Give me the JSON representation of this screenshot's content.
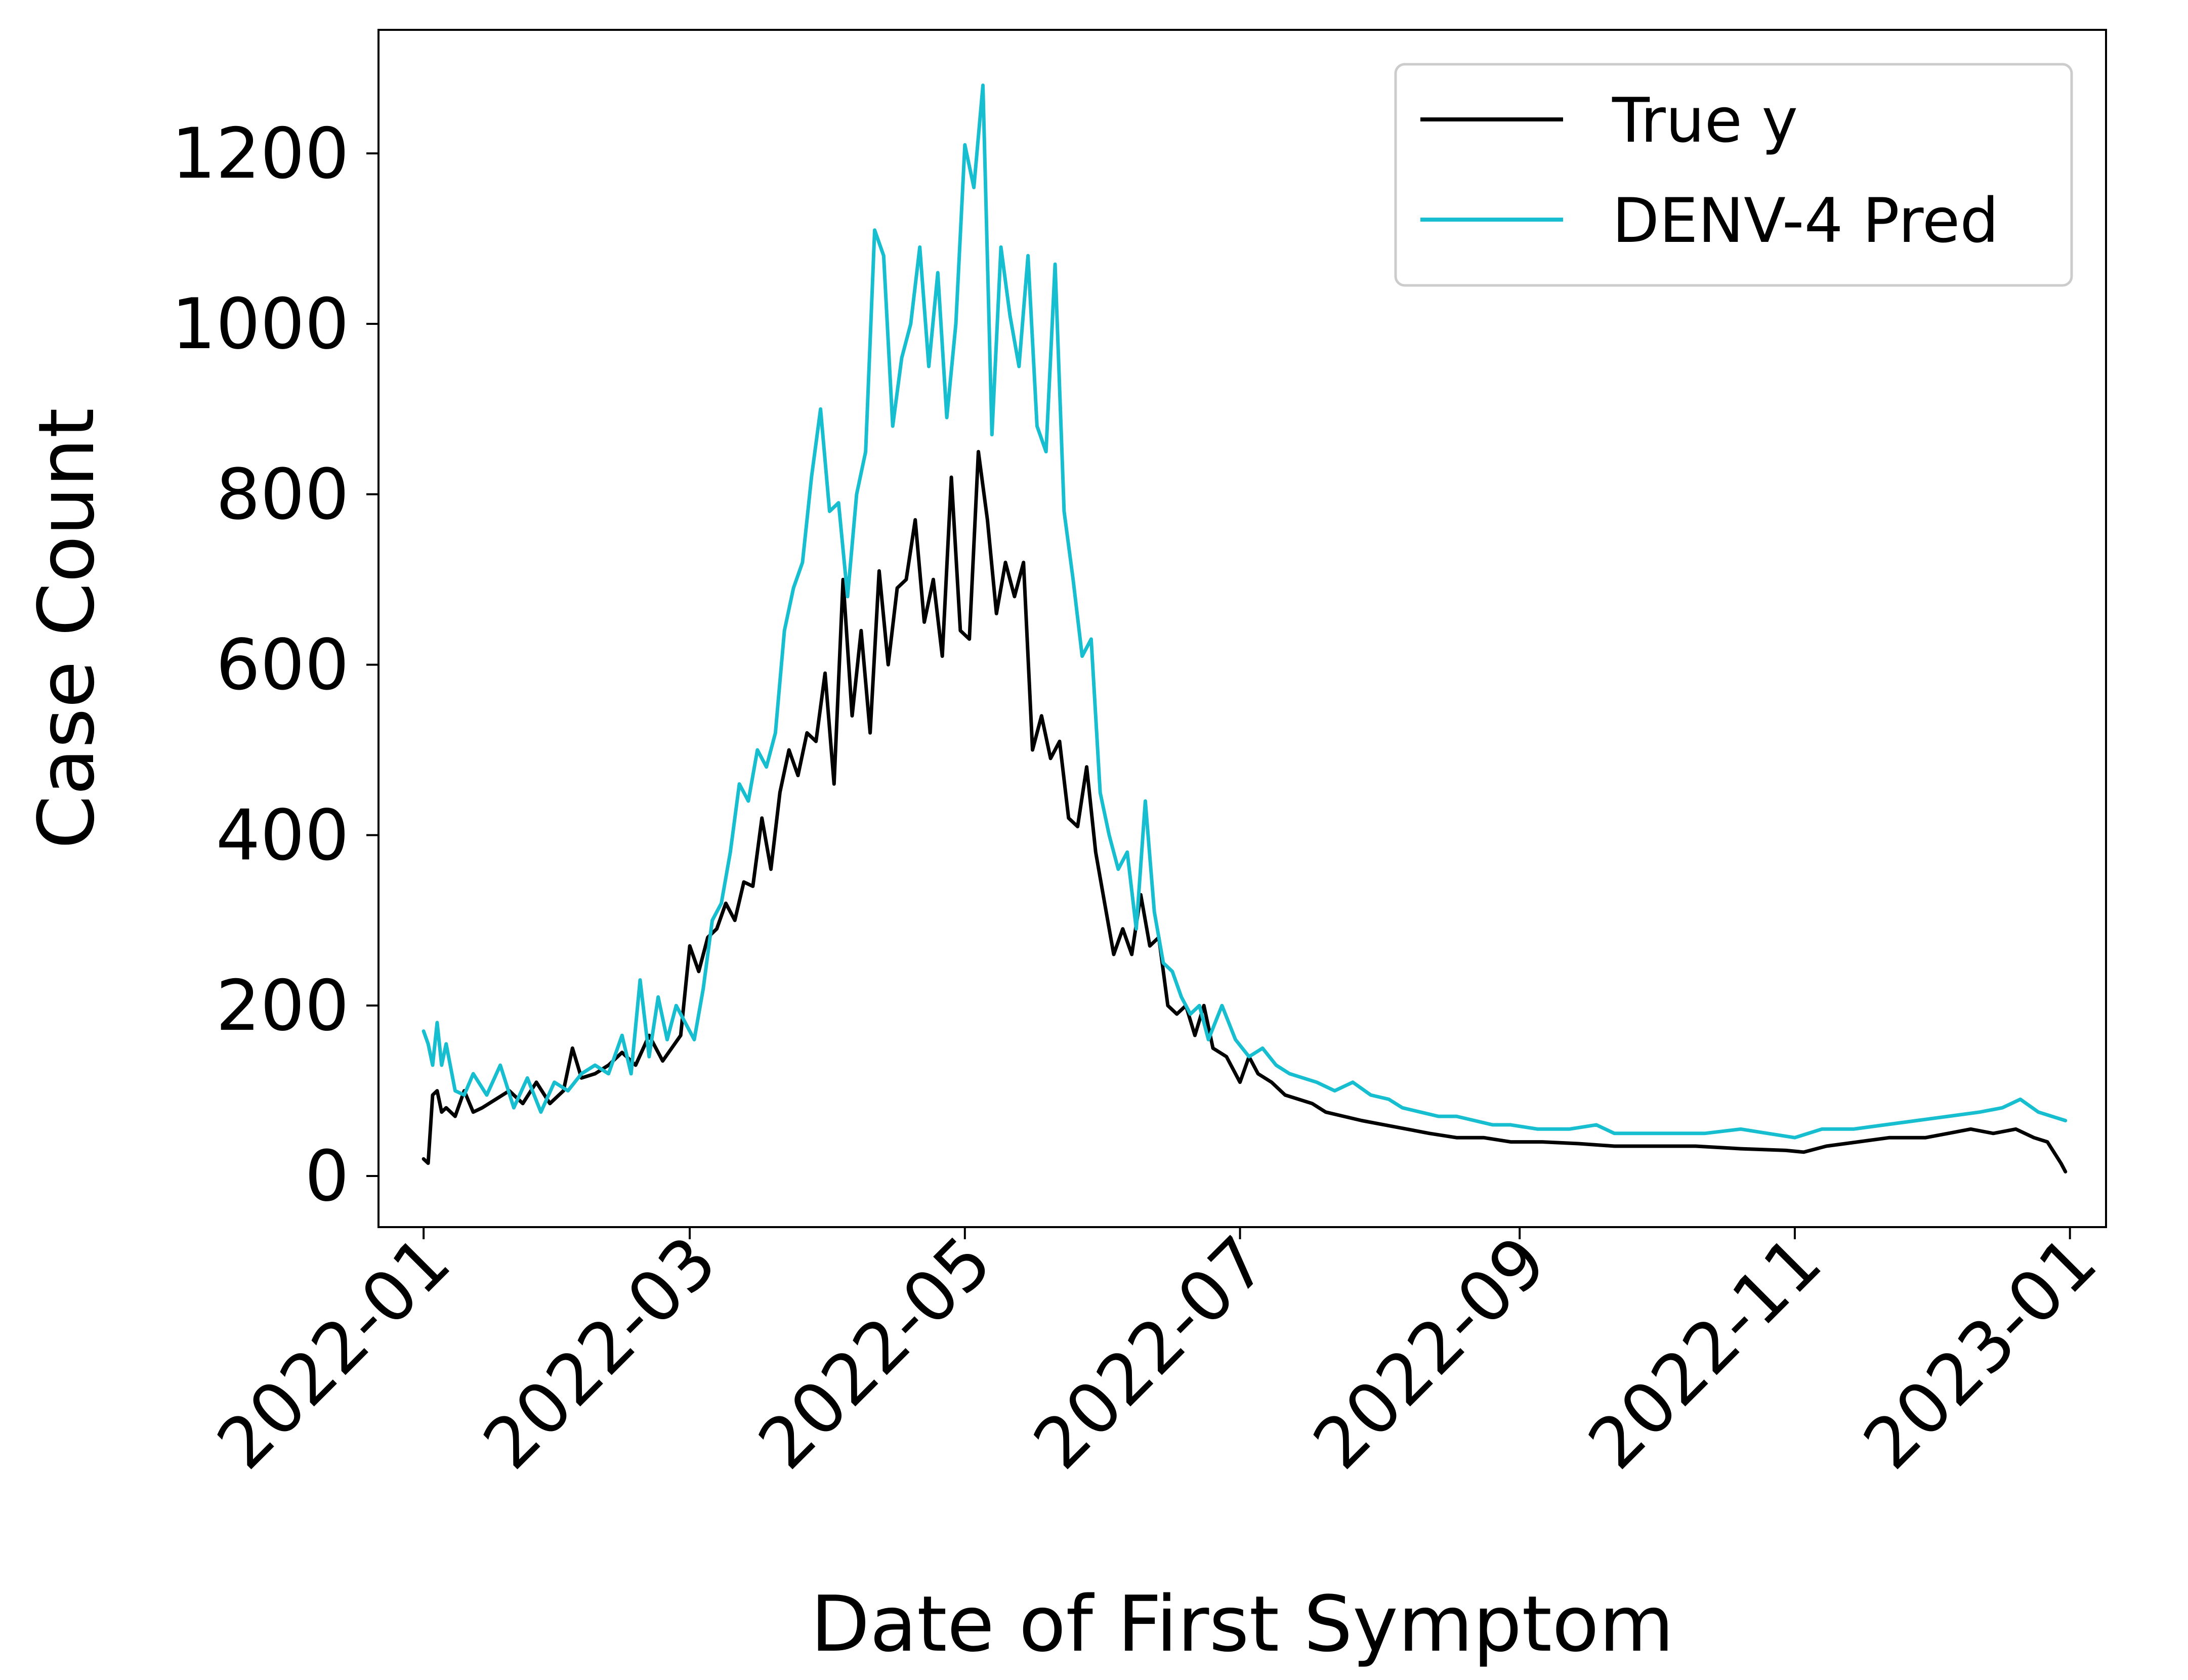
{
  "chart_data": {
    "type": "line",
    "xlabel": "Date of First Symptom",
    "ylabel": "Case Count",
    "x_ticks": [
      "2022-01",
      "2022-03",
      "2022-05",
      "2022-07",
      "2022-09",
      "2022-11",
      "2023-01"
    ],
    "y_ticks": [
      0,
      200,
      400,
      600,
      800,
      1000,
      1200
    ],
    "xlim": [
      "2021-12-22",
      "2023-01-09"
    ],
    "ylim": [
      -60,
      1345
    ],
    "grid": false,
    "legend_position": "top-right",
    "series": [
      {
        "name": "True y",
        "color": "#000000",
        "points": [
          [
            "2022-01-01",
            20
          ],
          [
            "2022-01-02",
            15
          ],
          [
            "2022-01-03",
            95
          ],
          [
            "2022-01-04",
            100
          ],
          [
            "2022-01-05",
            75
          ],
          [
            "2022-01-06",
            80
          ],
          [
            "2022-01-08",
            70
          ],
          [
            "2022-01-10",
            100
          ],
          [
            "2022-01-12",
            75
          ],
          [
            "2022-01-14",
            80
          ],
          [
            "2022-01-17",
            90
          ],
          [
            "2022-01-20",
            100
          ],
          [
            "2022-01-23",
            85
          ],
          [
            "2022-01-26",
            110
          ],
          [
            "2022-01-29",
            85
          ],
          [
            "2022-02-01",
            100
          ],
          [
            "2022-02-03",
            150
          ],
          [
            "2022-02-05",
            115
          ],
          [
            "2022-02-08",
            120
          ],
          [
            "2022-02-11",
            130
          ],
          [
            "2022-02-14",
            145
          ],
          [
            "2022-02-17",
            130
          ],
          [
            "2022-02-20",
            165
          ],
          [
            "2022-02-23",
            135
          ],
          [
            "2022-02-25",
            150
          ],
          [
            "2022-02-27",
            165
          ],
          [
            "2022-03-01",
            270
          ],
          [
            "2022-03-03",
            240
          ],
          [
            "2022-03-05",
            280
          ],
          [
            "2022-03-07",
            290
          ],
          [
            "2022-03-09",
            320
          ],
          [
            "2022-03-11",
            300
          ],
          [
            "2022-03-13",
            345
          ],
          [
            "2022-03-15",
            340
          ],
          [
            "2022-03-17",
            420
          ],
          [
            "2022-03-19",
            360
          ],
          [
            "2022-03-21",
            450
          ],
          [
            "2022-03-23",
            500
          ],
          [
            "2022-03-25",
            470
          ],
          [
            "2022-03-27",
            520
          ],
          [
            "2022-03-29",
            510
          ],
          [
            "2022-03-31",
            590
          ],
          [
            "2022-04-02",
            460
          ],
          [
            "2022-04-04",
            700
          ],
          [
            "2022-04-06",
            540
          ],
          [
            "2022-04-08",
            640
          ],
          [
            "2022-04-10",
            520
          ],
          [
            "2022-04-12",
            710
          ],
          [
            "2022-04-14",
            600
          ],
          [
            "2022-04-16",
            690
          ],
          [
            "2022-04-18",
            700
          ],
          [
            "2022-04-20",
            770
          ],
          [
            "2022-04-22",
            650
          ],
          [
            "2022-04-24",
            700
          ],
          [
            "2022-04-26",
            610
          ],
          [
            "2022-04-28",
            820
          ],
          [
            "2022-04-30",
            640
          ],
          [
            "2022-05-02",
            630
          ],
          [
            "2022-05-04",
            850
          ],
          [
            "2022-05-06",
            770
          ],
          [
            "2022-05-08",
            660
          ],
          [
            "2022-05-10",
            720
          ],
          [
            "2022-05-12",
            680
          ],
          [
            "2022-05-14",
            720
          ],
          [
            "2022-05-16",
            500
          ],
          [
            "2022-05-18",
            540
          ],
          [
            "2022-05-20",
            490
          ],
          [
            "2022-05-22",
            510
          ],
          [
            "2022-05-24",
            420
          ],
          [
            "2022-05-26",
            410
          ],
          [
            "2022-05-28",
            480
          ],
          [
            "2022-05-30",
            380
          ],
          [
            "2022-06-01",
            320
          ],
          [
            "2022-06-03",
            260
          ],
          [
            "2022-06-05",
            290
          ],
          [
            "2022-06-07",
            260
          ],
          [
            "2022-06-09",
            330
          ],
          [
            "2022-06-11",
            270
          ],
          [
            "2022-06-13",
            280
          ],
          [
            "2022-06-15",
            200
          ],
          [
            "2022-06-17",
            190
          ],
          [
            "2022-06-19",
            200
          ],
          [
            "2022-06-21",
            165
          ],
          [
            "2022-06-23",
            200
          ],
          [
            "2022-06-25",
            150
          ],
          [
            "2022-06-28",
            140
          ],
          [
            "2022-07-01",
            110
          ],
          [
            "2022-07-03",
            140
          ],
          [
            "2022-07-05",
            120
          ],
          [
            "2022-07-08",
            110
          ],
          [
            "2022-07-11",
            95
          ],
          [
            "2022-07-14",
            90
          ],
          [
            "2022-07-17",
            85
          ],
          [
            "2022-07-20",
            75
          ],
          [
            "2022-07-24",
            70
          ],
          [
            "2022-07-28",
            65
          ],
          [
            "2022-08-02",
            60
          ],
          [
            "2022-08-07",
            55
          ],
          [
            "2022-08-12",
            50
          ],
          [
            "2022-08-18",
            45
          ],
          [
            "2022-08-24",
            45
          ],
          [
            "2022-08-30",
            40
          ],
          [
            "2022-09-06",
            40
          ],
          [
            "2022-09-14",
            38
          ],
          [
            "2022-09-22",
            35
          ],
          [
            "2022-10-01",
            35
          ],
          [
            "2022-10-10",
            35
          ],
          [
            "2022-10-20",
            32
          ],
          [
            "2022-10-30",
            30
          ],
          [
            "2022-11-03",
            28
          ],
          [
            "2022-11-08",
            35
          ],
          [
            "2022-11-15",
            40
          ],
          [
            "2022-11-22",
            45
          ],
          [
            "2022-11-30",
            45
          ],
          [
            "2022-12-05",
            50
          ],
          [
            "2022-12-10",
            55
          ],
          [
            "2022-12-15",
            50
          ],
          [
            "2022-12-20",
            55
          ],
          [
            "2022-12-24",
            45
          ],
          [
            "2022-12-27",
            40
          ],
          [
            "2022-12-30",
            15
          ],
          [
            "2022-12-31",
            5
          ]
        ]
      },
      {
        "name": "DENV-4 Pred",
        "color": "#17becf",
        "points": [
          [
            "2022-01-01",
            170
          ],
          [
            "2022-01-02",
            155
          ],
          [
            "2022-01-03",
            130
          ],
          [
            "2022-01-04",
            180
          ],
          [
            "2022-01-05",
            130
          ],
          [
            "2022-01-06",
            155
          ],
          [
            "2022-01-08",
            100
          ],
          [
            "2022-01-10",
            95
          ],
          [
            "2022-01-12",
            120
          ],
          [
            "2022-01-15",
            95
          ],
          [
            "2022-01-18",
            130
          ],
          [
            "2022-01-21",
            80
          ],
          [
            "2022-01-24",
            115
          ],
          [
            "2022-01-27",
            75
          ],
          [
            "2022-01-30",
            110
          ],
          [
            "2022-02-02",
            100
          ],
          [
            "2022-02-05",
            120
          ],
          [
            "2022-02-08",
            130
          ],
          [
            "2022-02-11",
            120
          ],
          [
            "2022-02-14",
            165
          ],
          [
            "2022-02-16",
            120
          ],
          [
            "2022-02-18",
            230
          ],
          [
            "2022-02-20",
            140
          ],
          [
            "2022-02-22",
            210
          ],
          [
            "2022-02-24",
            160
          ],
          [
            "2022-02-26",
            200
          ],
          [
            "2022-02-28",
            180
          ],
          [
            "2022-03-02",
            160
          ],
          [
            "2022-03-04",
            220
          ],
          [
            "2022-03-06",
            300
          ],
          [
            "2022-03-08",
            320
          ],
          [
            "2022-03-10",
            380
          ],
          [
            "2022-03-12",
            460
          ],
          [
            "2022-03-14",
            440
          ],
          [
            "2022-03-16",
            500
          ],
          [
            "2022-03-18",
            480
          ],
          [
            "2022-03-20",
            520
          ],
          [
            "2022-03-22",
            640
          ],
          [
            "2022-03-24",
            690
          ],
          [
            "2022-03-26",
            720
          ],
          [
            "2022-03-28",
            820
          ],
          [
            "2022-03-30",
            900
          ],
          [
            "2022-04-01",
            780
          ],
          [
            "2022-04-03",
            790
          ],
          [
            "2022-04-05",
            680
          ],
          [
            "2022-04-07",
            800
          ],
          [
            "2022-04-09",
            850
          ],
          [
            "2022-04-11",
            1110
          ],
          [
            "2022-04-13",
            1080
          ],
          [
            "2022-04-15",
            880
          ],
          [
            "2022-04-17",
            960
          ],
          [
            "2022-04-19",
            1000
          ],
          [
            "2022-04-21",
            1090
          ],
          [
            "2022-04-23",
            950
          ],
          [
            "2022-04-25",
            1060
          ],
          [
            "2022-04-27",
            890
          ],
          [
            "2022-04-29",
            1000
          ],
          [
            "2022-05-01",
            1210
          ],
          [
            "2022-05-03",
            1160
          ],
          [
            "2022-05-05",
            1280
          ],
          [
            "2022-05-07",
            870
          ],
          [
            "2022-05-09",
            1090
          ],
          [
            "2022-05-11",
            1010
          ],
          [
            "2022-05-13",
            950
          ],
          [
            "2022-05-15",
            1080
          ],
          [
            "2022-05-17",
            880
          ],
          [
            "2022-05-19",
            850
          ],
          [
            "2022-05-21",
            1070
          ],
          [
            "2022-05-23",
            780
          ],
          [
            "2022-05-25",
            700
          ],
          [
            "2022-05-27",
            610
          ],
          [
            "2022-05-29",
            630
          ],
          [
            "2022-05-31",
            450
          ],
          [
            "2022-06-02",
            400
          ],
          [
            "2022-06-04",
            360
          ],
          [
            "2022-06-06",
            380
          ],
          [
            "2022-06-08",
            290
          ],
          [
            "2022-06-10",
            440
          ],
          [
            "2022-06-12",
            310
          ],
          [
            "2022-06-14",
            250
          ],
          [
            "2022-06-16",
            240
          ],
          [
            "2022-06-18",
            210
          ],
          [
            "2022-06-20",
            190
          ],
          [
            "2022-06-22",
            200
          ],
          [
            "2022-06-24",
            160
          ],
          [
            "2022-06-27",
            200
          ],
          [
            "2022-06-30",
            160
          ],
          [
            "2022-07-03",
            140
          ],
          [
            "2022-07-06",
            150
          ],
          [
            "2022-07-09",
            130
          ],
          [
            "2022-07-12",
            120
          ],
          [
            "2022-07-15",
            115
          ],
          [
            "2022-07-18",
            110
          ],
          [
            "2022-07-22",
            100
          ],
          [
            "2022-07-26",
            110
          ],
          [
            "2022-07-30",
            95
          ],
          [
            "2022-08-03",
            90
          ],
          [
            "2022-08-06",
            80
          ],
          [
            "2022-08-10",
            75
          ],
          [
            "2022-08-14",
            70
          ],
          [
            "2022-08-18",
            70
          ],
          [
            "2022-08-22",
            65
          ],
          [
            "2022-08-26",
            60
          ],
          [
            "2022-08-30",
            60
          ],
          [
            "2022-09-05",
            55
          ],
          [
            "2022-09-12",
            55
          ],
          [
            "2022-09-18",
            60
          ],
          [
            "2022-09-22",
            50
          ],
          [
            "2022-09-28",
            50
          ],
          [
            "2022-10-05",
            50
          ],
          [
            "2022-10-12",
            50
          ],
          [
            "2022-10-20",
            55
          ],
          [
            "2022-10-26",
            50
          ],
          [
            "2022-11-01",
            45
          ],
          [
            "2022-11-07",
            55
          ],
          [
            "2022-11-14",
            55
          ],
          [
            "2022-11-21",
            60
          ],
          [
            "2022-11-28",
            65
          ],
          [
            "2022-12-05",
            70
          ],
          [
            "2022-12-12",
            75
          ],
          [
            "2022-12-17",
            80
          ],
          [
            "2022-12-21",
            90
          ],
          [
            "2022-12-25",
            75
          ],
          [
            "2022-12-28",
            70
          ],
          [
            "2022-12-31",
            65
          ]
        ]
      }
    ]
  }
}
